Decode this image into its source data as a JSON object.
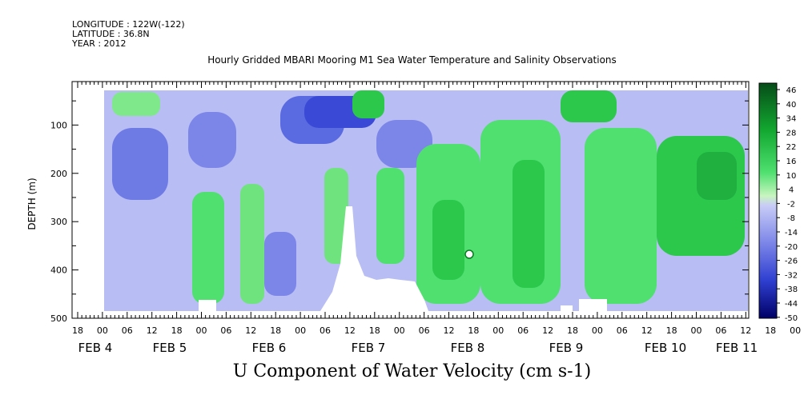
{
  "header": {
    "longitude": "LONGITUDE : 122W(-122)",
    "latitude": "LATITUDE : 36.8N",
    "year": "YEAR : 2012",
    "title": "Hourly Gridded MBARI Mooring M1 Sea Water Temperature and Salinity Observations"
  },
  "chart_data": {
    "type": "heatmap",
    "title": "Hourly Gridded MBARI Mooring M1 Sea Water Temperature and Salinity Observations",
    "xlabel": "U Component of Water Velocity (cm s-1)",
    "ylabel": "DEPTH (m)",
    "y_ticks": [
      "100",
      "200",
      "300",
      "400",
      "500"
    ],
    "ylim": [
      500,
      10
    ],
    "x_hour_ticks": [
      "18",
      "00",
      "06",
      "12",
      "18",
      "00",
      "06",
      "12",
      "18",
      "00",
      "06",
      "12",
      "18",
      "00",
      "06",
      "12",
      "18",
      "00",
      "06",
      "12",
      "18",
      "00",
      "06",
      "12",
      "18",
      "00",
      "06",
      "12",
      "18",
      "00",
      "06"
    ],
    "x_day_labels": [
      "FEB 4",
      "FEB 5",
      "FEB 6",
      "FEB 7",
      "FEB 8",
      "FEB 9",
      "FEB 10",
      "FEB 11"
    ],
    "colorbar_labels": [
      "46",
      "40",
      "34",
      "28",
      "22",
      "16",
      "10",
      "4",
      "-2",
      "-8",
      "-14",
      "-20",
      "-26",
      "-32",
      "-38",
      "-44",
      "-50"
    ],
    "colorbar_range": [
      -50,
      52
    ],
    "colors": {
      "strong_positive": "#064d18",
      "positive": "#22d44a",
      "weak_positive": "#b4f0a8",
      "weak_negative": "#b8bdf4",
      "negative": "#5a6ae0",
      "strong_negative": "#000070"
    },
    "notes": "Colored velocity field: negative (blue) dominates FEB 4–7 upper water column; positive (green) dominates FEB 8–11."
  }
}
